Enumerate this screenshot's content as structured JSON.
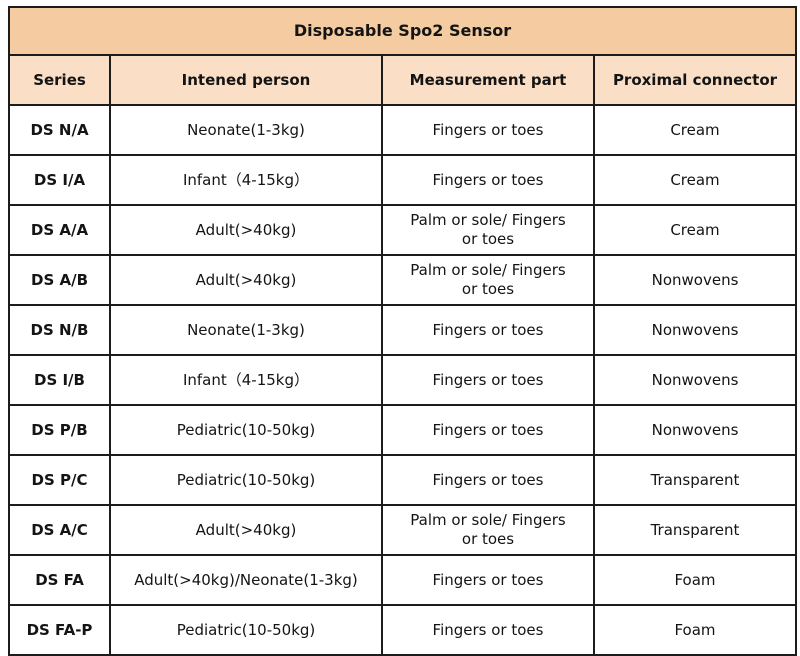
{
  "colors": {
    "title_bg": "#f5cba1",
    "header_bg": "#fadfc6",
    "border": "#1c1c1c",
    "text": "#141414"
  },
  "table": {
    "title": "Disposable Spo2 Sensor",
    "columns": [
      "Series",
      "Intened person",
      "Measurement part",
      "Proximal connector"
    ],
    "rows": [
      {
        "series": "DS N/A",
        "person": "Neonate(1-3kg)",
        "part": "Fingers or toes",
        "connector": "Cream"
      },
      {
        "series": "DS I/A",
        "person": "Infant（4-15kg）",
        "part": "Fingers or toes",
        "connector": "Cream"
      },
      {
        "series": "DS A/A",
        "person": "Adult(>40kg)",
        "part": "Palm or sole/  Fingers\nor toes",
        "connector": "Cream"
      },
      {
        "series": "DS A/B",
        "person": "Adult(>40kg)",
        "part": "Palm or sole/  Fingers\nor toes",
        "connector": "Nonwovens"
      },
      {
        "series": "DS N/B",
        "person": "Neonate(1-3kg)",
        "part": "Fingers or toes",
        "connector": "Nonwovens"
      },
      {
        "series": "DS I/B",
        "person": "Infant（4-15kg）",
        "part": "Fingers or toes",
        "connector": "Nonwovens"
      },
      {
        "series": "DS P/B",
        "person": "Pediatric(10-50kg)",
        "part": "Fingers or toes",
        "connector": "Nonwovens"
      },
      {
        "series": "DS P/C",
        "person": "Pediatric(10-50kg)",
        "part": "Fingers or toes",
        "connector": "Transparent"
      },
      {
        "series": "DS A/C",
        "person": "Adult(>40kg)",
        "part": "Palm or sole/  Fingers\nor toes",
        "connector": "Transparent"
      },
      {
        "series": "DS FA",
        "person": "Adult(>40kg)/Neonate(1-3kg)",
        "part": "Fingers or toes",
        "connector": "Foam"
      },
      {
        "series": "DS FA-P",
        "person": "Pediatric(10-50kg)",
        "part": "Fingers or toes",
        "connector": "Foam"
      }
    ]
  }
}
